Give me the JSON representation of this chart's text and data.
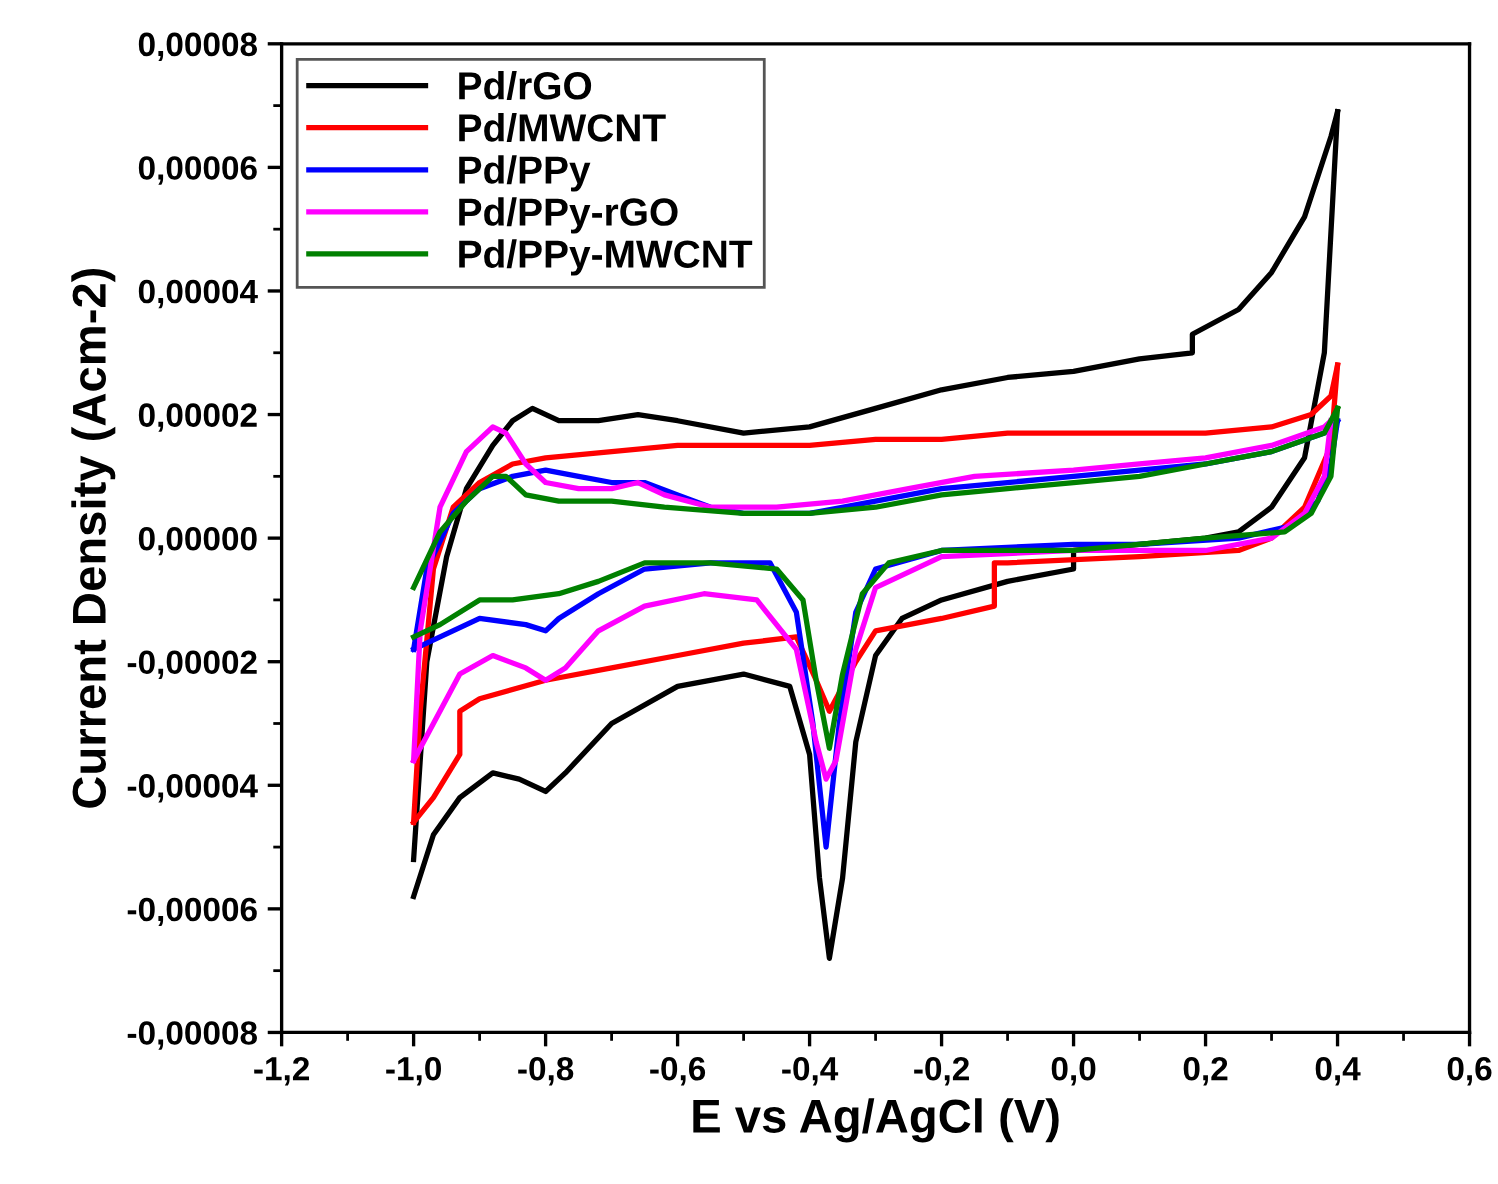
{
  "chart_data": {
    "type": "line",
    "xlabel": "E vs Ag/AgCl (V)",
    "ylabel": "Current Density (Acm-2)",
    "xlim": [
      -1.2,
      0.6
    ],
    "xticks": [
      {
        "value": -1.2,
        "label": "-1,2"
      },
      {
        "value": -1.0,
        "label": "-1,0"
      },
      {
        "value": -0.8,
        "label": "-0,8"
      },
      {
        "value": -0.6,
        "label": "-0,6"
      },
      {
        "value": -0.4,
        "label": "-0,4"
      },
      {
        "value": -0.2,
        "label": "-0,2"
      },
      {
        "value": 0.0,
        "label": "0,0"
      },
      {
        "value": 0.2,
        "label": "0,2"
      },
      {
        "value": 0.4,
        "label": "0,4"
      },
      {
        "value": 0.6,
        "label": "0,6"
      }
    ],
    "ylim": [
      -8e-05,
      8e-05
    ],
    "yticks": [
      {
        "value": -8e-05,
        "label": "-0,00008"
      },
      {
        "value": -6e-05,
        "label": "-0,00006"
      },
      {
        "value": -4e-05,
        "label": "-0,00004"
      },
      {
        "value": -2e-05,
        "label": "-0,00002"
      },
      {
        "value": 0,
        "label": "0,00000"
      },
      {
        "value": 2e-05,
        "label": "0,00002"
      },
      {
        "value": 4e-05,
        "label": "0,00004"
      },
      {
        "value": 6e-05,
        "label": "0,00006"
      },
      {
        "value": 8e-05,
        "label": "0,00008"
      }
    ],
    "grid": false,
    "legend": "top left",
    "marker": "none",
    "line_style": "solid",
    "series": [
      {
        "name": "Pd/rGO",
        "color": "#000000",
        "x": [
          -1.0,
          -0.98,
          -0.95,
          -0.92,
          -0.88,
          -0.85,
          -0.82,
          -0.78,
          -0.72,
          -0.66,
          -0.6,
          -0.5,
          -0.4,
          -0.3,
          -0.2,
          -0.1,
          0.0,
          0.1,
          0.18,
          0.18,
          0.25,
          0.3,
          0.35,
          0.39,
          0.4
        ],
        "values": [
          -5.2e-05,
          -2e-05,
          -3e-06,
          8e-06,
          1.5e-05,
          1.9e-05,
          2.1e-05,
          1.9e-05,
          1.9e-05,
          2e-05,
          1.9e-05,
          1.7e-05,
          1.8e-05,
          2.1e-05,
          2.4e-05,
          2.6e-05,
          2.7e-05,
          2.9e-05,
          3e-05,
          3.3e-05,
          3.7e-05,
          4.3e-05,
          5.2e-05,
          6.5e-05,
          6.9e-05
        ]
      },
      {
        "color": "#000000",
        "x": [
          0.4,
          0.38,
          0.35,
          0.3,
          0.25,
          0.2,
          0.1,
          0.0,
          0.0,
          -0.1,
          -0.2,
          -0.26,
          -0.3,
          -0.33,
          -0.35,
          -0.37,
          -0.385,
          -0.4,
          -0.43,
          -0.5,
          -0.6,
          -0.7,
          -0.77,
          -0.8,
          -0.84,
          -0.88,
          -0.93,
          -0.97,
          -1.0
        ],
        "values": [
          6.9e-05,
          3e-05,
          1.3e-05,
          5e-06,
          1e-06,
          0.0,
          -1e-06,
          -2e-06,
          -5e-06,
          -7e-06,
          -1e-05,
          -1.3e-05,
          -1.9e-05,
          -3.3e-05,
          -5.5e-05,
          -6.8e-05,
          -5.5e-05,
          -3.5e-05,
          -2.4e-05,
          -2.2e-05,
          -2.4e-05,
          -3e-05,
          -3.8e-05,
          -4.1e-05,
          -3.9e-05,
          -3.8e-05,
          -4.2e-05,
          -4.8e-05,
          -5.8e-05
        ]
      },
      {
        "name": "Pd/MWCNT",
        "color": "#ff0000",
        "x": [
          -1.0,
          -0.99,
          -0.97,
          -0.94,
          -0.9,
          -0.85,
          -0.8,
          -0.7,
          -0.6,
          -0.5,
          -0.4,
          -0.3,
          -0.2,
          -0.1,
          0.0,
          0.1,
          0.2,
          0.3,
          0.36,
          0.39,
          0.4
        ],
        "values": [
          -4.6e-05,
          -2.8e-05,
          -5e-06,
          5e-06,
          9e-06,
          1.2e-05,
          1.3e-05,
          1.4e-05,
          1.5e-05,
          1.5e-05,
          1.5e-05,
          1.6e-05,
          1.6e-05,
          1.7e-05,
          1.7e-05,
          1.7e-05,
          1.7e-05,
          1.8e-05,
          2e-05,
          2.3e-05,
          2.8e-05
        ]
      },
      {
        "color": "#ff0000",
        "x": [
          0.4,
          0.39,
          0.35,
          0.3,
          0.25,
          0.1,
          -0.1,
          -0.12,
          -0.12,
          -0.2,
          -0.3,
          -0.33,
          -0.37,
          -0.39,
          -0.42,
          -0.5,
          -0.6,
          -0.7,
          -0.8,
          -0.9,
          -0.93,
          -0.93,
          -0.97,
          -1.0
        ],
        "values": [
          2.8e-05,
          1.5e-05,
          5e-06,
          0.0,
          -2e-06,
          -3e-06,
          -4e-06,
          -4e-06,
          -1.1e-05,
          -1.3e-05,
          -1.5e-05,
          -2e-05,
          -2.8e-05,
          -2.3e-05,
          -1.6e-05,
          -1.7e-05,
          -1.9e-05,
          -2.1e-05,
          -2.3e-05,
          -2.6e-05,
          -2.8e-05,
          -3.5e-05,
          -4.2e-05,
          -4.6e-05
        ]
      },
      {
        "name": "Pd/PPy",
        "color": "#0000ff",
        "x": [
          -1.0,
          -0.98,
          -0.94,
          -0.9,
          -0.85,
          -0.8,
          -0.75,
          -0.7,
          -0.65,
          -0.6,
          -0.55,
          -0.5,
          -0.4,
          -0.3,
          -0.2,
          -0.1,
          0.0,
          0.1,
          0.2,
          0.3,
          0.38,
          0.4
        ],
        "values": [
          -1.8e-05,
          -5e-06,
          4e-06,
          8e-06,
          1e-05,
          1.1e-05,
          1e-05,
          9e-06,
          9e-06,
          7e-06,
          5e-06,
          4e-06,
          4e-06,
          6e-06,
          8e-06,
          9e-06,
          1e-05,
          1.1e-05,
          1.2e-05,
          1.4e-05,
          1.7e-05,
          1.9e-05
        ]
      },
      {
        "color": "#0000ff",
        "x": [
          0.4,
          0.39,
          0.37,
          0.33,
          0.25,
          0.1,
          0.0,
          -0.2,
          -0.3,
          -0.33,
          -0.355,
          -0.375,
          -0.395,
          -0.42,
          -0.46,
          -0.55,
          -0.65,
          -0.72,
          -0.78,
          -0.8,
          -0.83,
          -0.9,
          -1.0
        ],
        "values": [
          1.9e-05,
          1.2e-05,
          6e-06,
          2e-06,
          0.0,
          -1e-06,
          -1e-06,
          -2e-06,
          -5e-06,
          -1.2e-05,
          -3e-05,
          -5e-05,
          -3e-05,
          -1.2e-05,
          -4e-06,
          -4e-06,
          -5e-06,
          -9e-06,
          -1.3e-05,
          -1.5e-05,
          -1.4e-05,
          -1.3e-05,
          -1.8e-05
        ]
      },
      {
        "name": "Pd/PPy-rGO",
        "color": "#ff00ff",
        "x": [
          -1.0,
          -0.99,
          -0.96,
          -0.92,
          -0.88,
          -0.86,
          -0.83,
          -0.8,
          -0.75,
          -0.7,
          -0.66,
          -0.62,
          -0.55,
          -0.45,
          -0.35,
          -0.25,
          -0.15,
          0.0,
          0.1,
          0.2,
          0.3,
          0.38,
          0.39
        ],
        "values": [
          -3.6e-05,
          -1.5e-05,
          5e-06,
          1.4e-05,
          1.8e-05,
          1.7e-05,
          1.2e-05,
          9e-06,
          8e-06,
          8e-06,
          9e-06,
          7e-06,
          5e-06,
          5e-06,
          6e-06,
          8e-06,
          1e-05,
          1.1e-05,
          1.2e-05,
          1.3e-05,
          1.5e-05,
          1.8e-05,
          1.9e-05
        ]
      },
      {
        "color": "#ff00ff",
        "x": [
          0.39,
          0.38,
          0.35,
          0.3,
          0.2,
          0.0,
          -0.2,
          -0.3,
          -0.33,
          -0.36,
          -0.375,
          -0.39,
          -0.42,
          -0.48,
          -0.56,
          -0.65,
          -0.72,
          -0.77,
          -0.8,
          -0.83,
          -0.88,
          -0.93,
          -0.97,
          -1.0
        ],
        "values": [
          1.9e-05,
          1e-05,
          4e-06,
          0.0,
          -2e-06,
          -2e-06,
          -3e-06,
          -8e-06,
          -1.8e-05,
          -3.6e-05,
          -3.9e-05,
          -3.3e-05,
          -1.8e-05,
          -1e-05,
          -9e-06,
          -1.1e-05,
          -1.5e-05,
          -2.1e-05,
          -2.3e-05,
          -2.1e-05,
          -1.9e-05,
          -2.2e-05,
          -3e-05,
          -3.6e-05
        ]
      },
      {
        "name": "Pd/PPy-MWCNT",
        "color": "#008000",
        "x": [
          -1.0,
          -0.96,
          -0.92,
          -0.88,
          -0.86,
          -0.83,
          -0.78,
          -0.7,
          -0.62,
          -0.5,
          -0.4,
          -0.3,
          -0.2,
          -0.1,
          0.0,
          0.1,
          0.2,
          0.3,
          0.38,
          0.4
        ],
        "values": [
          -8e-06,
          1e-06,
          6e-06,
          1e-05,
          1e-05,
          7e-06,
          6e-06,
          6e-06,
          5e-06,
          4e-06,
          4e-06,
          5e-06,
          7e-06,
          8e-06,
          9e-06,
          1e-05,
          1.2e-05,
          1.4e-05,
          1.7e-05,
          2.1e-05
        ]
      },
      {
        "color": "#008000",
        "x": [
          0.4,
          0.39,
          0.36,
          0.32,
          0.2,
          0.0,
          -0.2,
          -0.28,
          -0.32,
          -0.35,
          -0.37,
          -0.39,
          -0.41,
          -0.45,
          -0.55,
          -0.65,
          -0.72,
          -0.78,
          -0.85,
          -0.9,
          -0.96,
          -1.0
        ],
        "values": [
          2.1e-05,
          1e-05,
          4e-06,
          1e-06,
          0.0,
          -2e-06,
          -2e-06,
          -4e-06,
          -9e-06,
          -2.2e-05,
          -3.4e-05,
          -2.3e-05,
          -1e-05,
          -5e-06,
          -4e-06,
          -4e-06,
          -7e-06,
          -9e-06,
          -1e-05,
          -1e-05,
          -1.4e-05,
          -1.6e-05
        ]
      }
    ]
  }
}
